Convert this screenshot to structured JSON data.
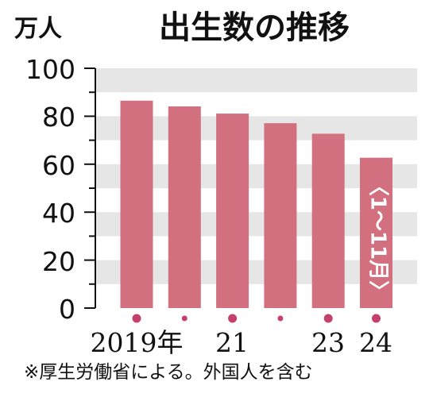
{
  "chart_data": {
    "type": "bar",
    "title": "出生数の推移",
    "unit_label": "万人",
    "categories": [
      "2019年",
      "",
      "21",
      "",
      "23",
      "24"
    ],
    "values": [
      86.5,
      84.1,
      81.1,
      77.1,
      72.7,
      62.7
    ],
    "yticks": [
      "100",
      "80",
      "60",
      "40",
      "20",
      "0"
    ],
    "ylim": [
      0,
      100
    ],
    "bar_color": "#d2707f",
    "band_color": "#e6e6e6",
    "marker_color": "#c5406a",
    "last_bar_label": "〈1～11月〉",
    "footnote": "※厚生労働省による。外国人を含む"
  }
}
